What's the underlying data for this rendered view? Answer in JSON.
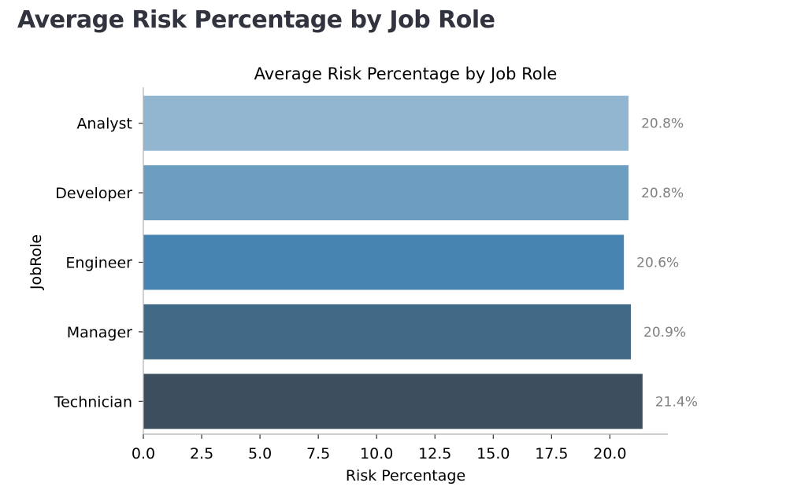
{
  "page": {
    "heading": "Average Risk Percentage by Job Role"
  },
  "chart_data": {
    "type": "bar",
    "orientation": "horizontal",
    "title": "Average Risk Percentage by Job Role",
    "xlabel": "Risk Percentage",
    "ylabel": "JobRole",
    "categories": [
      "Analyst",
      "Developer",
      "Engineer",
      "Manager",
      "Technician"
    ],
    "values": [
      20.8,
      20.8,
      20.6,
      20.9,
      21.4
    ],
    "data_labels": [
      "20.8%",
      "20.8%",
      "20.6%",
      "20.9%",
      "21.4%"
    ],
    "colors": [
      "#92B6D0",
      "#6C9EC1",
      "#4884B2",
      "#416A87",
      "#3D4F5F"
    ],
    "label_color": "#808080",
    "xticks": [
      0.0,
      2.5,
      5.0,
      7.5,
      10.0,
      12.5,
      15.0,
      17.5,
      20.0
    ],
    "xtick_labels": [
      "0.0",
      "2.5",
      "5.0",
      "7.5",
      "10.0",
      "12.5",
      "15.0",
      "17.5",
      "20.0"
    ],
    "xlim": [
      0,
      22.5
    ],
    "grid": false,
    "legend": "none"
  }
}
